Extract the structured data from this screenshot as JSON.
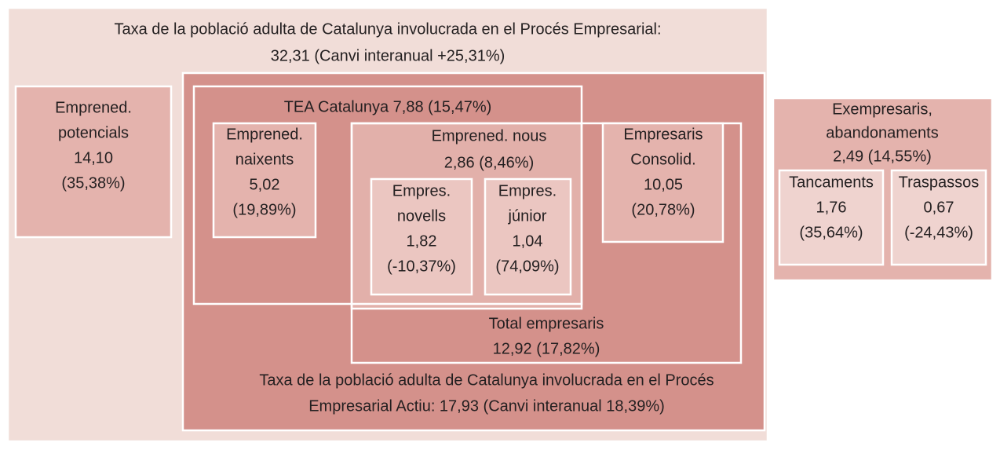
{
  "outer": {
    "lines": [
      "Taxa de la població adulta de Catalunya involucrada en el Procés Empresarial:",
      "32,31 (Canvi interanual +25,31%)"
    ]
  },
  "potencials": {
    "lines": [
      "Emprened.",
      "potencials",
      "14,10",
      "(35,38%)"
    ]
  },
  "tea": {
    "lines": [
      "TEA Catalunya 7,88 (15,47%)"
    ]
  },
  "naixents": {
    "lines": [
      "Emprened.",
      "naixents",
      "5,02",
      "(19,89%)"
    ]
  },
  "nous": {
    "lines": [
      "Emprened. nous",
      "2,86 (8,46%)"
    ]
  },
  "novells": {
    "lines": [
      "Empres.",
      "novells",
      "1,82",
      "(-10,37%)"
    ]
  },
  "junior": {
    "lines": [
      "Empres.",
      "júnior",
      "1,04",
      "(74,09%)"
    ]
  },
  "consolid": {
    "lines": [
      "Empresaris",
      "Consolid.",
      "10,05",
      "(20,78%)"
    ]
  },
  "total": {
    "lines": [
      "Total empresaris",
      "12,92 (17,82%)"
    ]
  },
  "actiu": {
    "lines": [
      "Taxa de la població adulta de Catalunya involucrada en el Procés",
      "Empresarial Actiu: 17,93 (Canvi interanual 18,39%)"
    ]
  },
  "exempresaris": {
    "lines": [
      "Exempresaris,",
      "abandonaments",
      "2,49 (14,55%)"
    ]
  },
  "tancaments": {
    "lines": [
      "Tancaments",
      "1,76",
      "(35,64%)"
    ]
  },
  "traspassos": {
    "lines": [
      "Traspassos",
      "0,67",
      "(-24,43%)"
    ]
  }
}
